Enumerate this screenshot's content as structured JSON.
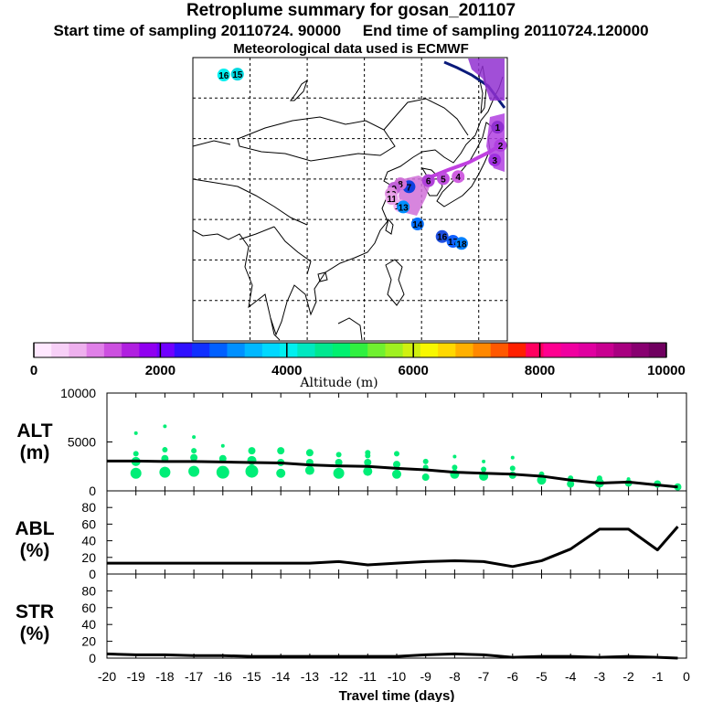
{
  "chart_data": {
    "type": "line",
    "title": "Retroplume summary for gosan_201107",
    "subtitle_start": "Start time of sampling 20110724. 90000",
    "subtitle_end": "End time of sampling 20110724.120000",
    "subtitle_met": "Meteorological data used is ECMWF",
    "colorbar": {
      "label": "Altitude (m)",
      "ticks": [
        "0",
        "2000",
        "4000",
        "6000",
        "8000",
        "10000"
      ],
      "range": [
        0,
        10000
      ],
      "colors": [
        "#ffe8ff",
        "#f7d0f7",
        "#eeb0ee",
        "#e080e8",
        "#cc50e0",
        "#b020e0",
        "#9000f0",
        "#7000ff",
        "#3010ff",
        "#1030ff",
        "#0060ff",
        "#0090ff",
        "#00b8ff",
        "#00d8ff",
        "#00f0f0",
        "#00e8c0",
        "#00e890",
        "#00f070",
        "#30f040",
        "#70f030",
        "#a0f020",
        "#d0f010",
        "#f8f800",
        "#ffd800",
        "#ffb000",
        "#ff8800",
        "#ff5800",
        "#ff2000",
        "#ff0060",
        "#ff0090",
        "#f000a0",
        "#e000a0",
        "#c80090",
        "#a80080",
        "#880070",
        "#700060"
      ]
    },
    "map": {
      "markers": [
        {
          "label": "16",
          "lon": 95.4,
          "lat": 65.7,
          "color": "#00f0f0"
        },
        {
          "label": "15",
          "lon": 97.8,
          "lat": 65.9,
          "color": "#00d8e0"
        },
        {
          "label": "1",
          "lon": 143.3,
          "lat": 52.8,
          "color": "#9030d0"
        },
        {
          "label": "2",
          "lon": 143.8,
          "lat": 48.3,
          "color": "#b040e0"
        },
        {
          "label": "3",
          "lon": 142.8,
          "lat": 44.7,
          "color": "#a030e0"
        },
        {
          "label": "4",
          "lon": 136.4,
          "lat": 40.6,
          "color": "#d060e0"
        },
        {
          "label": "5",
          "lon": 133.8,
          "lat": 40.1,
          "color": "#c050e0"
        },
        {
          "label": "6",
          "lon": 131.2,
          "lat": 39.6,
          "color": "#b040d8"
        },
        {
          "label": "7",
          "lon": 127.8,
          "lat": 38.1,
          "color": "#1040e0"
        },
        {
          "label": "8",
          "lon": 126.3,
          "lat": 38.8,
          "color": "#d070d8"
        },
        {
          "label": "9",
          "lon": 125.2,
          "lat": 37.7,
          "color": "#c060d8"
        },
        {
          "label": "10",
          "lon": 124.7,
          "lat": 36.4,
          "color": "#e090e0"
        },
        {
          "label": "11",
          "lon": 124.8,
          "lat": 35.2,
          "color": "#e8a0e8"
        },
        {
          "label": "12",
          "lon": 126.2,
          "lat": 33.4,
          "color": "#f0b0f0"
        },
        {
          "label": "13",
          "lon": 126.8,
          "lat": 33.1,
          "color": "#0090ff"
        },
        {
          "label": "14",
          "lon": 129.3,
          "lat": 28.9,
          "color": "#0070ff"
        },
        {
          "label": "16",
          "lon": 133.6,
          "lat": 25.8,
          "color": "#2050e0"
        },
        {
          "label": "17",
          "lon": 135.5,
          "lat": 24.6,
          "color": "#1060ff"
        },
        {
          "label": "18",
          "lon": 137.0,
          "lat": 24.1,
          "color": "#0080ff"
        }
      ]
    },
    "x": [
      -20,
      -19,
      -18,
      -17,
      -16,
      -15,
      -14,
      -13,
      -12,
      -11,
      -10,
      -9,
      -8,
      -7,
      -6,
      -5,
      -4,
      -3,
      -2,
      -1,
      -0.3
    ],
    "xticks": [
      "-20",
      "-19",
      "-18",
      "-17",
      "-16",
      "-15",
      "-14",
      "-13",
      "-12",
      "-11",
      "-10",
      "-9",
      "-8",
      "-7",
      "-6",
      "-5",
      "-4",
      "-3",
      "-2",
      "-1",
      "0"
    ],
    "xlabel": "Travel time (days)",
    "xlim": [
      -20,
      0
    ],
    "panels": [
      {
        "name": "ALT",
        "ylabel_top": "ALT",
        "ylabel_bottom": "(m)",
        "ylim": [
          0,
          10000
        ],
        "yticks": [
          "0",
          "5000",
          "10000"
        ],
        "series": [
          {
            "name": "mean altitude",
            "values": [
              3050,
              3050,
              3000,
              3000,
              2950,
              2900,
              2850,
              2650,
              2550,
              2500,
              2300,
              2150,
              1900,
              1800,
              1700,
              1500,
              1100,
              800,
              900,
              600,
              400
            ]
          }
        ],
        "dots": {
          "color": "#00ee77",
          "points": [
            [
              -19,
              1800,
              6
            ],
            [
              -19,
              3000,
              5
            ],
            [
              -19,
              3800,
              3
            ],
            [
              -19,
              5900,
              2
            ],
            [
              -18,
              1900,
              6
            ],
            [
              -18,
              3300,
              4
            ],
            [
              -18,
              4200,
              3
            ],
            [
              -18,
              6600,
              2
            ],
            [
              -17,
              2000,
              6
            ],
            [
              -17,
              3400,
              4
            ],
            [
              -17,
              4100,
              3
            ],
            [
              -17,
              5500,
              2
            ],
            [
              -16,
              1900,
              7
            ],
            [
              -16,
              3300,
              4
            ],
            [
              -16,
              4600,
              2
            ],
            [
              -15,
              2000,
              7
            ],
            [
              -15,
              3100,
              5
            ],
            [
              -15,
              4100,
              4
            ],
            [
              -14,
              1800,
              5
            ],
            [
              -14,
              2900,
              4
            ],
            [
              -14,
              4100,
              4
            ],
            [
              -13,
              2100,
              5
            ],
            [
              -13,
              2900,
              4
            ],
            [
              -13,
              3900,
              4
            ],
            [
              -12,
              1800,
              6
            ],
            [
              -12,
              2900,
              4
            ],
            [
              -12,
              3700,
              3
            ],
            [
              -11,
              2000,
              5
            ],
            [
              -11,
              2900,
              4
            ],
            [
              -11,
              3600,
              3
            ],
            [
              -11,
              3900,
              3
            ],
            [
              -10,
              1700,
              5
            ],
            [
              -10,
              2700,
              4
            ],
            [
              -10,
              3800,
              3
            ],
            [
              -9,
              1400,
              4
            ],
            [
              -9,
              2400,
              3
            ],
            [
              -9,
              3000,
              3
            ],
            [
              -8,
              1700,
              5
            ],
            [
              -8,
              2400,
              3
            ],
            [
              -8,
              3500,
              2
            ],
            [
              -7,
              1500,
              5
            ],
            [
              -7,
              2200,
              3
            ],
            [
              -7,
              3000,
              2
            ],
            [
              -6,
              1600,
              4
            ],
            [
              -6,
              2300,
              3
            ],
            [
              -6,
              3400,
              2
            ],
            [
              -5,
              1100,
              5
            ],
            [
              -5,
              1700,
              3
            ],
            [
              -4,
              700,
              4
            ],
            [
              -4,
              1300,
              3
            ],
            [
              -3,
              800,
              5
            ],
            [
              -3,
              1300,
              3
            ],
            [
              -2,
              800,
              4
            ],
            [
              -2,
              1200,
              2
            ],
            [
              -1,
              700,
              4
            ],
            [
              -0.3,
              400,
              4
            ]
          ]
        }
      },
      {
        "name": "ABL",
        "ylabel_top": "ABL",
        "ylabel_bottom": "(%)",
        "ylim": [
          0,
          100
        ],
        "yticks": [
          "0",
          "20",
          "40",
          "60",
          "80"
        ],
        "series": [
          {
            "name": "ABL fraction",
            "values": [
              13,
              13,
              13,
              13,
              13,
              13,
              13,
              13,
              15,
              11,
              13,
              15,
              16,
              15,
              9,
              16,
              30,
              54,
              54,
              29,
              57
            ]
          }
        ]
      },
      {
        "name": "STR",
        "ylabel_top": "STR",
        "ylabel_bottom": "(%)",
        "ylim": [
          0,
          100
        ],
        "yticks": [
          "0",
          "20",
          "40",
          "60",
          "80"
        ],
        "series": [
          {
            "name": "stratosphere fraction",
            "values": [
              5,
              4,
              4,
              3,
              3,
              2,
              2,
              2,
              2,
              2,
              2,
              4,
              5,
              4,
              1,
              2,
              2,
              1,
              2,
              1,
              0
            ]
          }
        ]
      }
    ]
  }
}
